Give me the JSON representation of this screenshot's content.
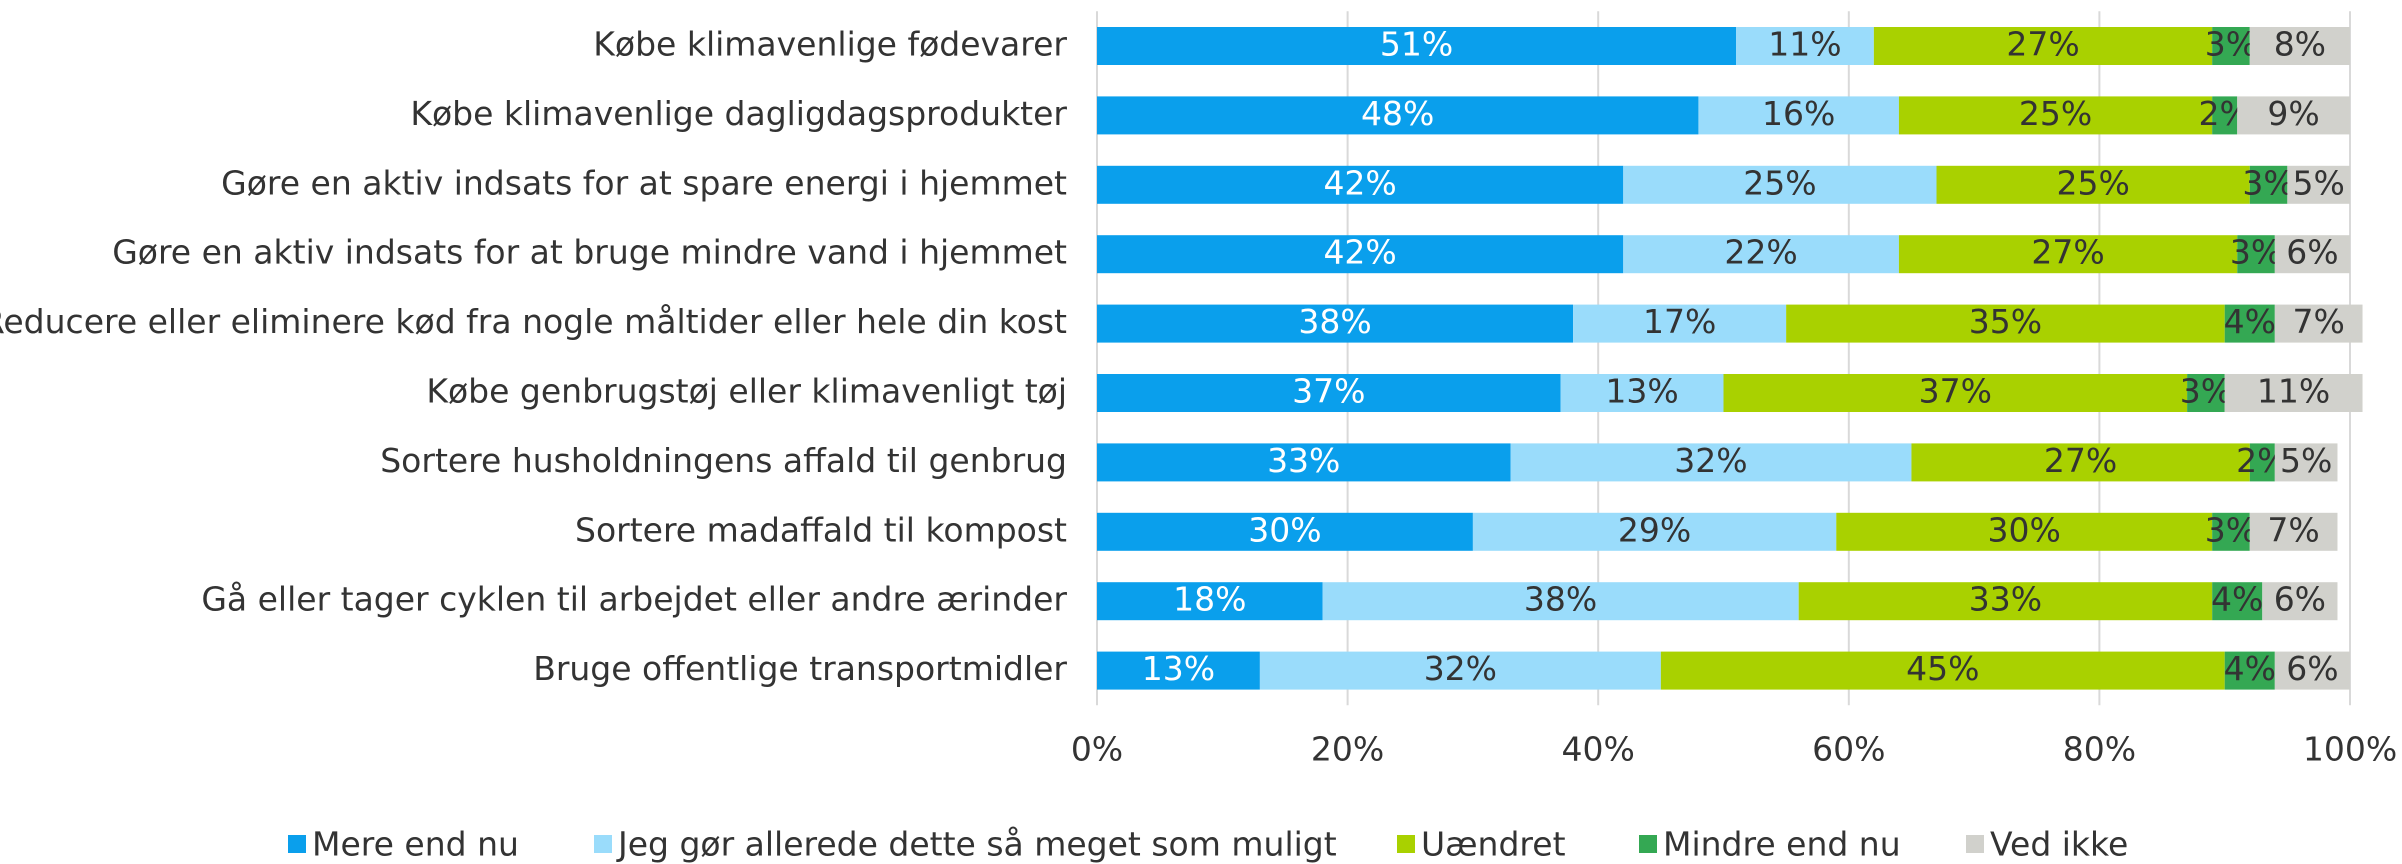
{
  "chart_data": {
    "type": "stacked_barh",
    "categories": [
      "Købe klimavenlige fødevarer",
      "Købe klimavenlige dagligdagsprodukter",
      "Gøre en aktiv indsats for at spare energi i hjemmet",
      "Gøre en aktiv indsats for at bruge mindre vand i hjemmet",
      "Reducere eller eliminere kød fra nogle måltider eller hele din kost",
      "Købe genbrugstøj eller klimavenligt tøj",
      "Sortere husholdningens affald til genbrug",
      "Sortere madaffald til kompost",
      "Gå eller tager cyklen til arbejdet eller andre ærinder",
      "Bruge offentlige transportmidler"
    ],
    "series": [
      {
        "name": "Mere end nu",
        "color": "#0a9fec",
        "values": [
          51,
          48,
          42,
          42,
          38,
          37,
          33,
          30,
          18,
          13
        ],
        "value_labels": [
          "51%",
          "48%",
          "42%",
          "42%",
          "38%",
          "37%",
          "33%",
          "30%",
          "18%",
          "13%"
        ]
      },
      {
        "name": "Jeg gør allerede dette så meget som muligt",
        "color": "#9adcfb",
        "values": [
          11,
          16,
          25,
          22,
          17,
          13,
          32,
          29,
          38,
          32
        ],
        "value_labels": [
          "11%",
          "16%",
          "25%",
          "22%",
          "17%",
          "13%",
          "32%",
          "29%",
          "38%",
          "32%"
        ]
      },
      {
        "name": "Uændret",
        "color": "#a9d100",
        "values": [
          27,
          25,
          25,
          27,
          35,
          37,
          27,
          30,
          33,
          45
        ],
        "value_labels": [
          "27%",
          "25%",
          "25%",
          "27%",
          "35%",
          "37%",
          "27%",
          "30%",
          "33%",
          "45%"
        ]
      },
      {
        "name": "Mindre end nu",
        "color": "#34a853",
        "values": [
          3,
          2,
          3,
          3,
          4,
          3,
          2,
          3,
          4,
          4
        ],
        "value_labels": [
          "3%",
          "2%",
          "3%",
          "3%",
          "4%",
          "3%",
          "2%",
          "3%",
          "4%",
          "4%"
        ]
      },
      {
        "name": "Ved ikke",
        "color": "#d1d1cc",
        "values": [
          8,
          9,
          5,
          6,
          7,
          11,
          5,
          7,
          6,
          6
        ],
        "value_labels": [
          "8%",
          "9%",
          "5%",
          "6%",
          "7%",
          "11%",
          "5%",
          "7%",
          "6%",
          "6%"
        ]
      }
    ],
    "xlim": [
      0,
      100
    ],
    "xticks": [
      {
        "value": 0,
        "label": "0%"
      },
      {
        "value": 20,
        "label": "20%"
      },
      {
        "value": 40,
        "label": "40%"
      },
      {
        "value": 60,
        "label": "60%"
      },
      {
        "value": 80,
        "label": "80%"
      },
      {
        "value": 100,
        "label": "100%"
      }
    ],
    "grid": true,
    "legend": "bottom"
  }
}
